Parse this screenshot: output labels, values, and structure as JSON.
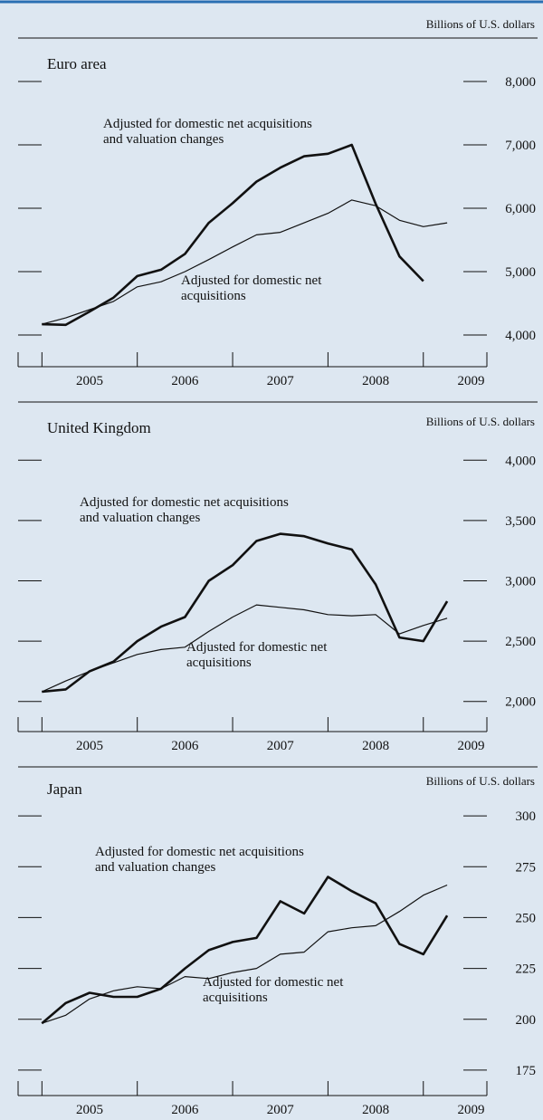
{
  "figure": {
    "top_rule_color": "#2a6fb3",
    "background": "#dde7f1"
  },
  "chart_data": [
    {
      "type": "line",
      "title": "Euro area",
      "unit_label": "Billions of U.S. dollars",
      "x_ticks": [
        "2005",
        "2006",
        "2007",
        "2008",
        "2009"
      ],
      "xlim": [
        "2004-10",
        "2009-09"
      ],
      "ylim": [
        3500,
        8500
      ],
      "y_ticks": [
        4000,
        5000,
        6000,
        7000,
        8000
      ],
      "y_tick_labels": [
        "4,000",
        "5,000",
        "6,000",
        "7,000",
        "8,000"
      ],
      "left_tick_values": [
        4000,
        5000,
        6000,
        7000,
        8000
      ],
      "annotations": [
        "Adjusted for domestic net acquisitions and valuation changes",
        "Adjusted for domestic net acquisitions"
      ],
      "series": [
        {
          "label": "Adjusted for domestic net acquisitions and valuation changes",
          "emphasis": "thick",
          "x": [
            "2004-12",
            "2005-03",
            "2005-06",
            "2005-09",
            "2005-12",
            "2006-03",
            "2006-06",
            "2006-09",
            "2006-12",
            "2007-03",
            "2007-06",
            "2007-09",
            "2007-12",
            "2008-03",
            "2008-06",
            "2008-09",
            "2008-12",
            "2009-03"
          ],
          "y": [
            4170,
            4160,
            4370,
            4590,
            4930,
            5030,
            5280,
            5770,
            6080,
            6420,
            6640,
            6820,
            6860,
            7000,
            6070,
            5240,
            4850,
            null
          ]
        },
        {
          "label": "Adjusted for domestic net acquisitions",
          "emphasis": "thin",
          "x": [
            "2004-12",
            "2005-03",
            "2005-06",
            "2005-09",
            "2005-12",
            "2006-03",
            "2006-06",
            "2006-09",
            "2006-12",
            "2007-03",
            "2007-06",
            "2007-09",
            "2007-12",
            "2008-03",
            "2008-06",
            "2008-09",
            "2008-12",
            "2009-03"
          ],
          "y": [
            4170,
            4270,
            4400,
            4530,
            4760,
            4840,
            5000,
            5190,
            5390,
            5580,
            5620,
            5770,
            5920,
            6130,
            6040,
            5810,
            5710,
            5770
          ]
        }
      ]
    },
    {
      "type": "line",
      "title": "United Kingdom",
      "unit_label": "Billions of U.S. dollars",
      "x_ticks": [
        "2005",
        "2006",
        "2007",
        "2008",
        "2009"
      ],
      "xlim": [
        "2004-10",
        "2009-09"
      ],
      "ylim": [
        1750,
        4250
      ],
      "y_ticks": [
        2000,
        2500,
        3000,
        3500,
        4000
      ],
      "y_tick_labels": [
        "2,000",
        "2,500",
        "3,000",
        "3,500",
        "4,000"
      ],
      "left_tick_values": [
        2000,
        2500,
        3000,
        3500,
        4000
      ],
      "annotations": [
        "Adjusted for domestic net acquisitions and valuation changes",
        "Adjusted for domestic net acquisitions"
      ],
      "series": [
        {
          "label": "Adjusted for domestic net acquisitions and valuation changes",
          "emphasis": "thick",
          "x": [
            "2004-12",
            "2005-03",
            "2005-06",
            "2005-09",
            "2005-12",
            "2006-03",
            "2006-06",
            "2006-09",
            "2006-12",
            "2007-03",
            "2007-06",
            "2007-09",
            "2007-12",
            "2008-03",
            "2008-06",
            "2008-09",
            "2008-12",
            "2009-03"
          ],
          "y": [
            2080,
            2100,
            2250,
            2330,
            2500,
            2620,
            2700,
            3000,
            3130,
            3330,
            3390,
            3370,
            3310,
            3260,
            2970,
            2530,
            2500,
            2830
          ]
        },
        {
          "label": "Adjusted for domestic net acquisitions",
          "emphasis": "thin",
          "x": [
            "2004-12",
            "2005-03",
            "2005-06",
            "2005-09",
            "2005-12",
            "2006-03",
            "2006-06",
            "2006-09",
            "2006-12",
            "2007-03",
            "2007-06",
            "2007-09",
            "2007-12",
            "2008-03",
            "2008-06",
            "2008-09",
            "2008-12",
            "2009-03"
          ],
          "y": [
            2080,
            2170,
            2250,
            2320,
            2390,
            2430,
            2450,
            2580,
            2700,
            2800,
            2780,
            2760,
            2720,
            2710,
            2720,
            2560,
            2630,
            2690
          ]
        }
      ]
    },
    {
      "type": "line",
      "title": "Japan",
      "unit_label": "Billions of U.S. dollars",
      "x_ticks": [
        "2005",
        "2006",
        "2007",
        "2008",
        "2009"
      ],
      "xlim": [
        "2004-10",
        "2009-09"
      ],
      "ylim": [
        162.5,
        312.5
      ],
      "y_ticks": [
        175,
        200,
        225,
        250,
        275,
        300
      ],
      "y_tick_labels": [
        "175",
        "200",
        "225",
        "250",
        "275",
        "300"
      ],
      "left_tick_values": [
        175,
        200,
        225,
        250,
        275,
        300
      ],
      "annotations": [
        "Adjusted for domestic net acquisitions and valuation changes",
        "Adjusted for domestic net acquisitions"
      ],
      "series": [
        {
          "label": "Adjusted for domestic net acquisitions and valuation changes",
          "emphasis": "thick",
          "x": [
            "2004-12",
            "2005-03",
            "2005-06",
            "2005-09",
            "2005-12",
            "2006-03",
            "2006-06",
            "2006-09",
            "2006-12",
            "2007-03",
            "2007-06",
            "2007-09",
            "2007-12",
            "2008-03",
            "2008-06",
            "2008-09",
            "2008-12",
            "2009-03"
          ],
          "y": [
            198,
            208,
            213,
            211,
            211,
            215,
            225,
            234,
            238,
            240,
            258,
            252,
            270,
            263,
            257,
            237,
            232,
            251
          ]
        },
        {
          "label": "Adjusted for domestic net acquisitions",
          "emphasis": "thin",
          "x": [
            "2004-12",
            "2005-03",
            "2005-06",
            "2005-09",
            "2005-12",
            "2006-03",
            "2006-06",
            "2006-09",
            "2006-12",
            "2007-03",
            "2007-06",
            "2007-09",
            "2007-12",
            "2008-03",
            "2008-06",
            "2008-09",
            "2008-12",
            "2009-03"
          ],
          "y": [
            198,
            202,
            210,
            214,
            216,
            215,
            221,
            220,
            223,
            225,
            232,
            233,
            243,
            245,
            246,
            253,
            261,
            266
          ]
        }
      ]
    }
  ]
}
